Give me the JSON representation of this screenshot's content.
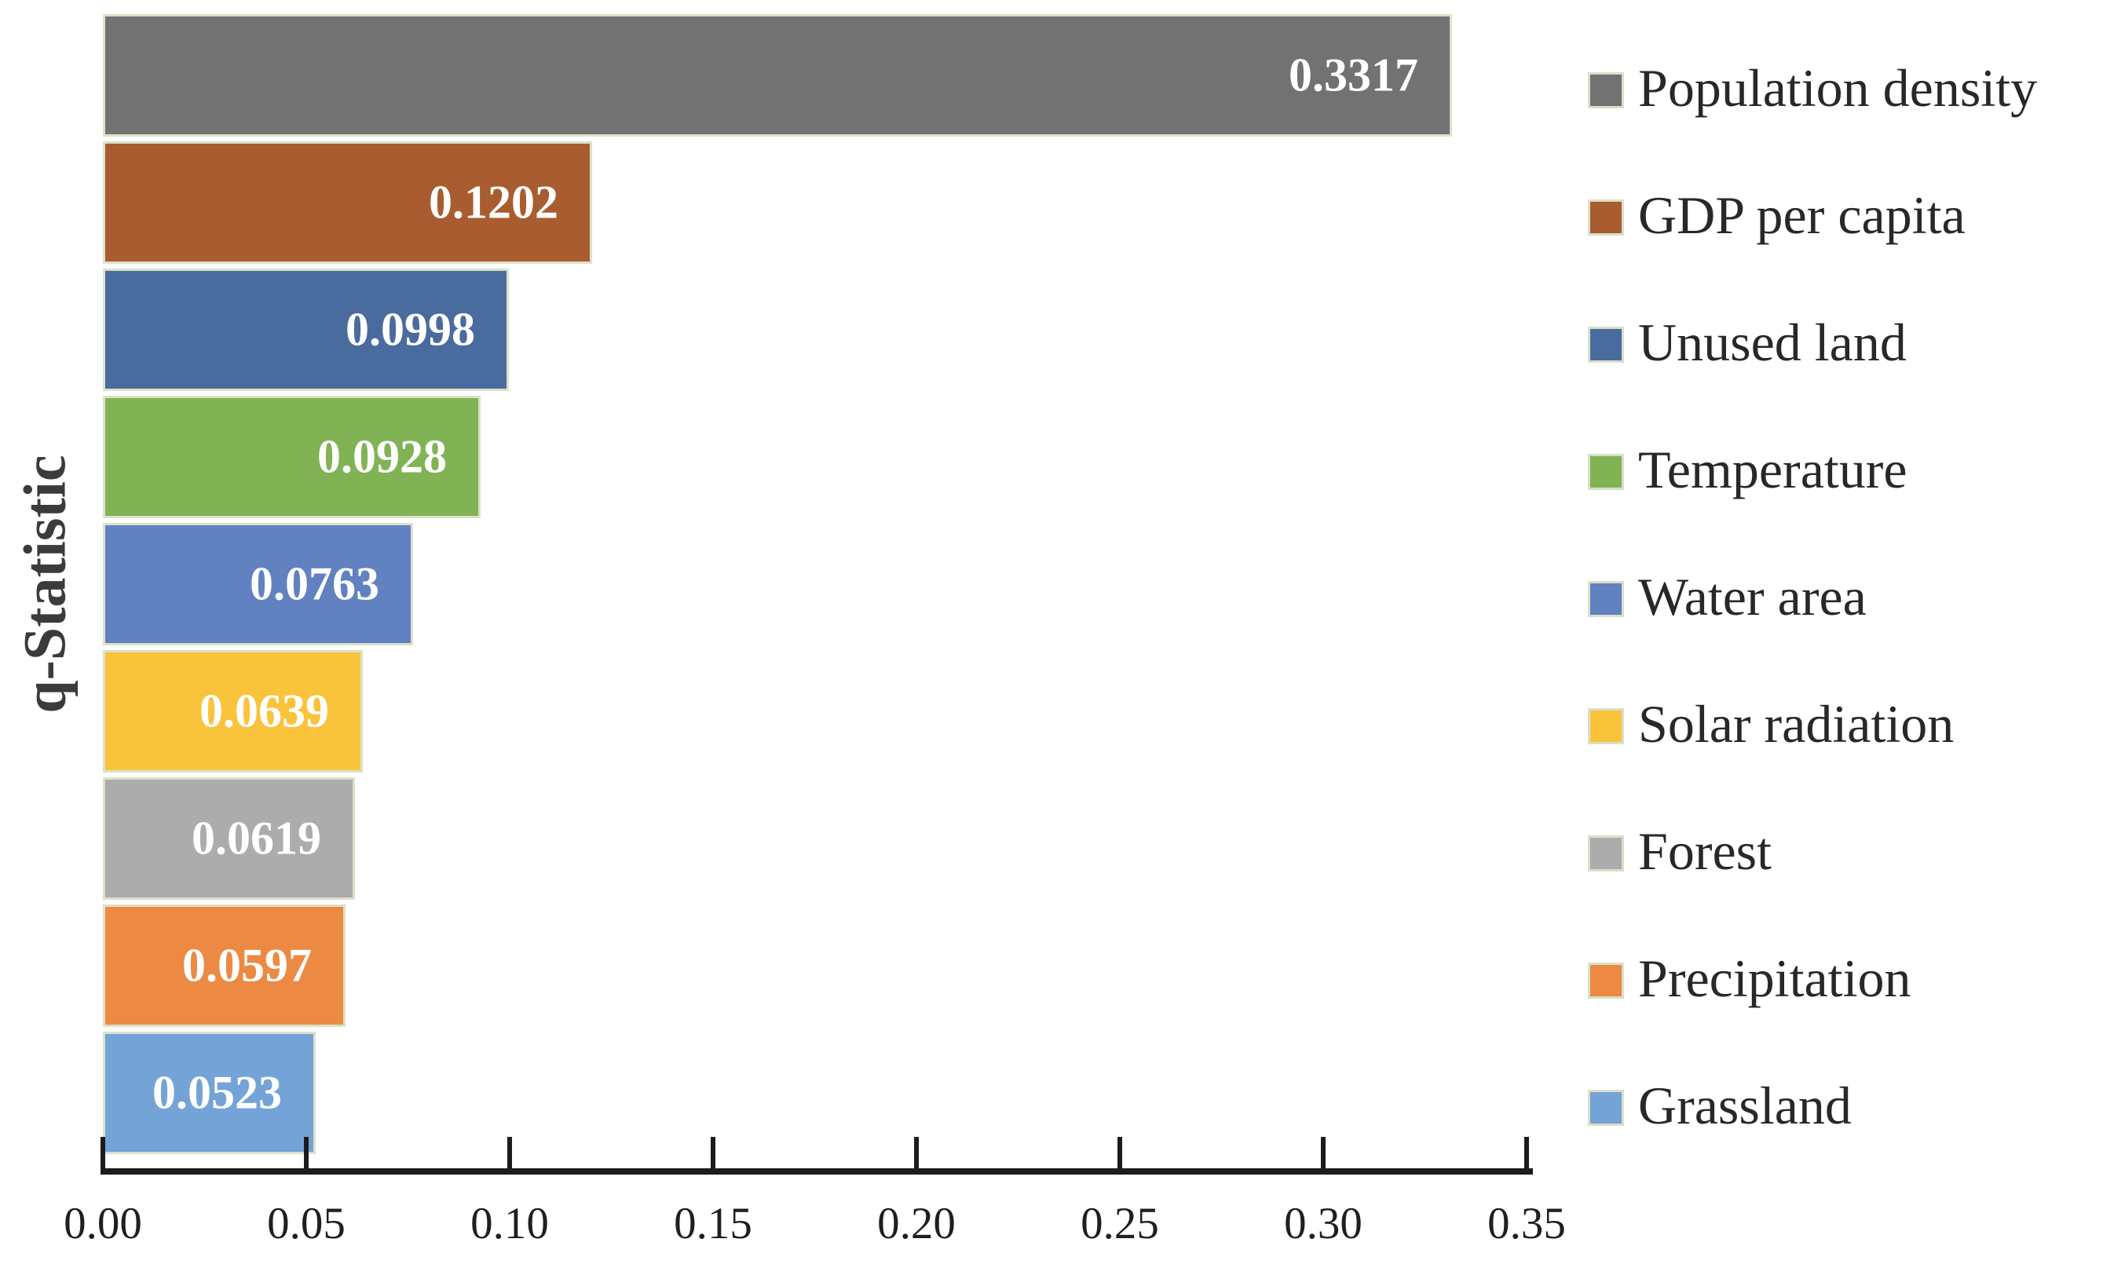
{
  "chart_data": {
    "type": "bar",
    "orientation": "horizontal",
    "title": "",
    "xlabel": "",
    "ylabel": "q-Statistic",
    "xlim": [
      0.0,
      0.35
    ],
    "grid": false,
    "legend_position": "right",
    "categories": [
      "Population density",
      "GDP per capita",
      "Unused land",
      "Temperature",
      "Water area",
      "Solar radiation",
      "Forest",
      "Precipitation",
      "Grassland"
    ],
    "values": [
      0.3317,
      0.1202,
      0.0998,
      0.0928,
      0.0763,
      0.0639,
      0.0619,
      0.0597,
      0.0523
    ],
    "value_labels": [
      "0.3317",
      "0.1202",
      "0.0998",
      "0.0928",
      "0.0763",
      "0.0639",
      "0.0619",
      "0.0597",
      "0.0523"
    ],
    "bar_colors": [
      "#727272",
      "#A95C30",
      "#4A6B9E",
      "#81B355",
      "#6181C0",
      "#FAC33C",
      "#ACACAC",
      "#EC8A43",
      "#74A3D7"
    ],
    "x_ticks": [
      {
        "value": 0.0,
        "label": "0.00"
      },
      {
        "value": 0.05,
        "label": "0.05"
      },
      {
        "value": 0.1,
        "label": "0.10"
      },
      {
        "value": 0.15,
        "label": "0.15"
      },
      {
        "value": 0.2,
        "label": "0.20"
      },
      {
        "value": 0.25,
        "label": "0.25"
      },
      {
        "value": 0.3,
        "label": "0.30"
      },
      {
        "value": 0.35,
        "label": "0.35"
      }
    ],
    "colors": {
      "background": "#ffffff",
      "axis": "#1c1c1c",
      "tick_label": "#1f1f1f",
      "value_label": "#ffffff",
      "legend_text": "#282828",
      "ylabel_text": "#3b3b3b",
      "bar_border": "#dbe2c8"
    }
  }
}
